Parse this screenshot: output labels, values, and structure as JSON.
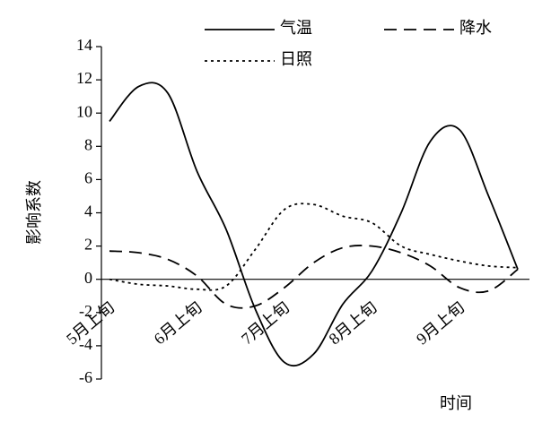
{
  "chart_data": {
    "type": "line",
    "ylabel": "影响系数",
    "xlabel": "时间",
    "categories": [
      "5月上旬",
      null,
      null,
      "6月上旬",
      null,
      null,
      "7月上旬",
      null,
      null,
      "8月上旬",
      null,
      null,
      "9月上旬",
      null,
      null
    ],
    "series": [
      {
        "name": "气温",
        "color": "#000000",
        "dash": "solid",
        "values": [
          9.5,
          11.6,
          11.2,
          6.5,
          3.0,
          -1.8,
          -5.0,
          -4.5,
          -1.5,
          0.5,
          4.0,
          8.3,
          9.0,
          5.0,
          0.6
        ]
      },
      {
        "name": "降水",
        "color": "#000000",
        "dash": "dashed",
        "values": [
          1.7,
          1.6,
          1.2,
          0.2,
          -1.5,
          -1.6,
          -0.5,
          1.0,
          1.9,
          2.0,
          1.6,
          0.8,
          -0.5,
          -0.7,
          0.6
        ]
      },
      {
        "name": "日照",
        "color": "#000000",
        "dash": "dotted",
        "values": [
          0.0,
          -0.3,
          -0.4,
          -0.6,
          -0.4,
          1.8,
          4.2,
          4.5,
          3.8,
          3.4,
          2.0,
          1.5,
          1.1,
          0.8,
          0.7
        ]
      }
    ],
    "ylim": [
      -6,
      14
    ],
    "yticks": [
      -6,
      -4,
      -2,
      0,
      2,
      4,
      6,
      8,
      10,
      12,
      14
    ]
  }
}
